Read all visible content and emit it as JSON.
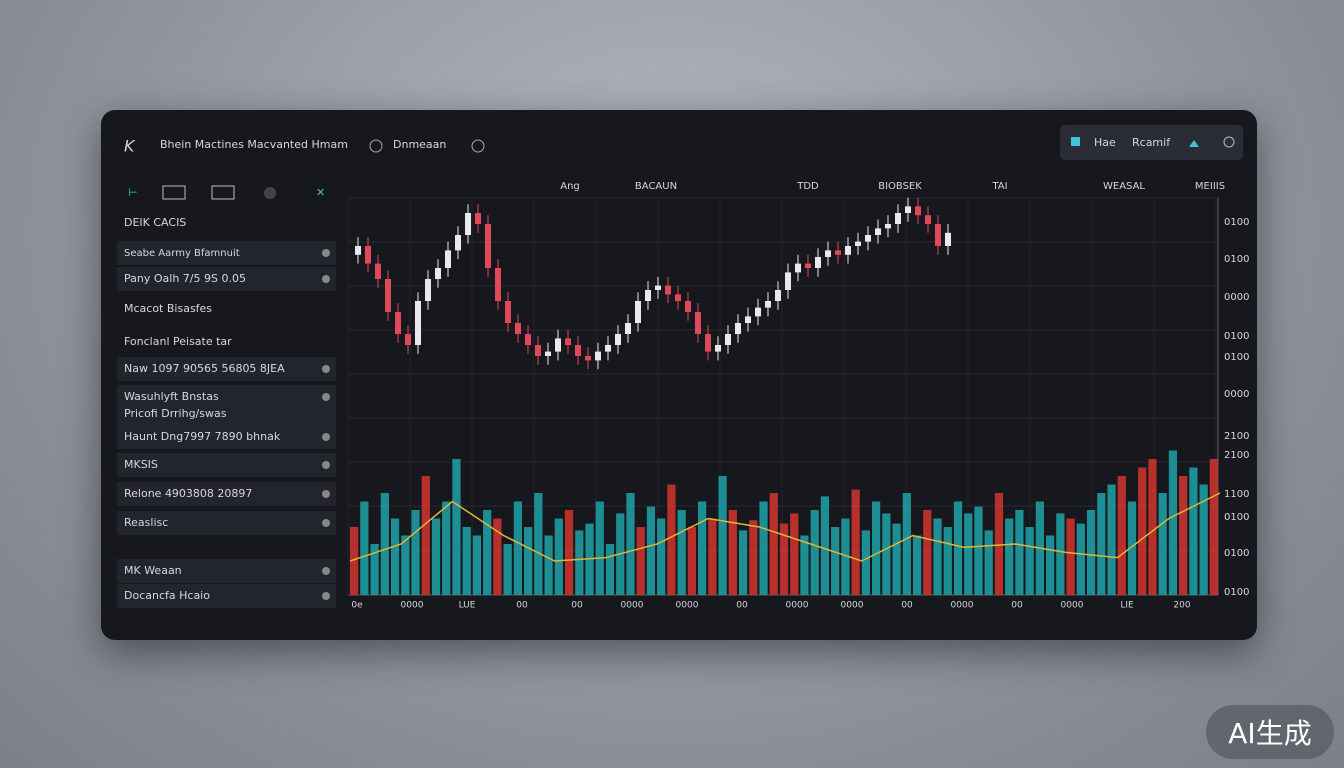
{
  "header": {
    "title": "Bhein Mactines Macvanted Hmam",
    "account": "Dnmeaan",
    "box_left": "Hae",
    "box_right": "Rcamif"
  },
  "sidebar": {
    "section": "DEIK CACIS",
    "rows": [
      "Seabe Aarmy Bfamnuit",
      "Pany Oalh 7/5 9S 0.05",
      "Mcacot Bisasfes",
      "Fonclanl Peisate tar",
      "Naw 1097 90565 56805 8JEA",
      "Wasuhlyft Bnstas",
      "Pricofi Drrihg/swas",
      "Haunt Dng7997 7890 bhnak",
      "MKSIS",
      "Relone 4903808 20897",
      "Reaslisc",
      "MK Weaan",
      "Docancfa Hcaio"
    ]
  },
  "chart": {
    "top_labels": [
      "Ang",
      "BACAUN",
      "TDD",
      "BIOBSEK",
      "TAI",
      "WEASAL",
      "MEIIIS"
    ],
    "y_labels": [
      "0100",
      "0100",
      "0000",
      "0100",
      "0100",
      "0000",
      "2100",
      "2100",
      "1100",
      "0100",
      "0100",
      "0100"
    ],
    "x_labels": [
      "0e",
      "0000",
      "LUE",
      "00",
      "00",
      "0000",
      "0000",
      "00",
      "0000",
      "0000",
      "00",
      "0000",
      "00",
      "0000",
      "LIE",
      "200"
    ],
    "up_color": "#e8e8ee",
    "down_color": "#e0495a",
    "candles": [
      [
        66,
        74,
        62,
        70
      ],
      [
        70,
        74,
        58,
        62
      ],
      [
        62,
        66,
        51,
        55
      ],
      [
        55,
        59,
        36,
        40
      ],
      [
        40,
        44,
        26,
        30
      ],
      [
        30,
        34,
        21,
        25
      ],
      [
        25,
        49,
        21,
        45
      ],
      [
        45,
        59,
        41,
        55
      ],
      [
        55,
        64,
        51,
        60
      ],
      [
        60,
        72,
        56,
        68
      ],
      [
        68,
        79,
        64,
        75
      ],
      [
        75,
        89,
        71,
        85
      ],
      [
        85,
        89,
        76,
        80
      ],
      [
        80,
        84,
        56,
        60
      ],
      [
        60,
        64,
        41,
        45
      ],
      [
        45,
        49,
        31,
        35
      ],
      [
        35,
        39,
        26,
        30
      ],
      [
        30,
        34,
        21,
        25
      ],
      [
        25,
        29,
        16,
        20
      ],
      [
        20,
        26,
        16,
        22
      ],
      [
        22,
        32,
        18,
        28
      ],
      [
        28,
        32,
        21,
        25
      ],
      [
        25,
        29,
        16,
        20
      ],
      [
        20,
        24,
        14,
        18
      ],
      [
        18,
        26,
        14,
        22
      ],
      [
        22,
        29,
        18,
        25
      ],
      [
        25,
        34,
        21,
        30
      ],
      [
        30,
        39,
        26,
        35
      ],
      [
        35,
        49,
        31,
        45
      ],
      [
        45,
        54,
        41,
        50
      ],
      [
        50,
        56,
        46,
        52
      ],
      [
        52,
        56,
        44,
        48
      ],
      [
        48,
        52,
        41,
        45
      ],
      [
        45,
        49,
        36,
        40
      ],
      [
        40,
        44,
        26,
        30
      ],
      [
        30,
        34,
        18,
        22
      ],
      [
        22,
        29,
        18,
        25
      ],
      [
        25,
        34,
        21,
        30
      ],
      [
        30,
        39,
        26,
        35
      ],
      [
        35,
        42,
        31,
        38
      ],
      [
        38,
        46,
        34,
        42
      ],
      [
        42,
        49,
        38,
        45
      ],
      [
        45,
        54,
        41,
        50
      ],
      [
        50,
        62,
        46,
        58
      ],
      [
        58,
        66,
        54,
        62
      ],
      [
        62,
        66,
        56,
        60
      ],
      [
        60,
        69,
        56,
        65
      ],
      [
        65,
        72,
        61,
        68
      ],
      [
        68,
        72,
        62,
        66
      ],
      [
        66,
        74,
        62,
        70
      ],
      [
        70,
        76,
        66,
        72
      ],
      [
        72,
        79,
        68,
        75
      ],
      [
        75,
        82,
        71,
        78
      ],
      [
        78,
        84,
        74,
        80
      ],
      [
        80,
        89,
        76,
        85
      ],
      [
        85,
        92,
        81,
        88
      ],
      [
        88,
        92,
        80,
        84
      ],
      [
        84,
        88,
        76,
        80
      ],
      [
        80,
        84,
        66,
        70
      ],
      [
        70,
        80,
        66,
        76
      ]
    ],
    "volume_colors": [
      "#1fa3a8",
      "#d4352f"
    ],
    "volume": [
      40,
      55,
      30,
      60,
      45,
      35,
      50,
      70,
      45,
      55,
      80,
      40,
      35,
      50,
      45,
      30,
      55,
      40,
      60,
      35,
      45,
      50,
      38,
      42,
      55,
      30,
      48,
      60,
      40,
      52,
      45,
      65,
      50,
      40,
      55,
      45,
      70,
      50,
      38,
      44,
      55,
      60,
      42,
      48,
      35,
      50,
      58,
      40,
      45,
      62,
      38,
      55,
      48,
      42,
      60,
      35,
      50,
      45,
      40,
      55,
      48,
      52,
      38,
      60,
      45,
      50,
      40,
      55,
      35,
      48,
      45,
      42,
      50,
      60,
      65,
      70,
      55,
      75,
      80,
      60,
      85,
      70,
      75,
      65,
      80
    ],
    "ma_color": "#e0b53a",
    "volume_ma": [
      20,
      30,
      55,
      35,
      20,
      22,
      30,
      45,
      40,
      30,
      20,
      35,
      28,
      30,
      25,
      22,
      45,
      60
    ]
  },
  "watermark": "AI生成"
}
